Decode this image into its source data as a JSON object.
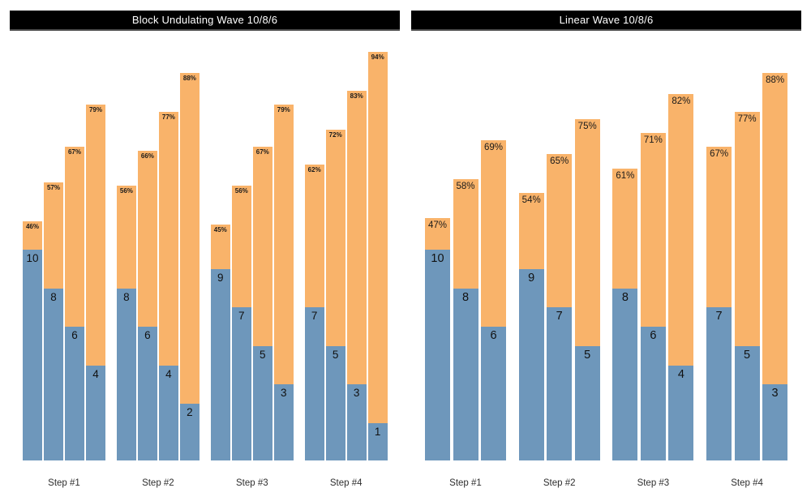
{
  "colors": {
    "background": "#ffffff",
    "bar_blue": "#6e97bb",
    "bar_orange": "#f9b36a",
    "title_bg": "#000000",
    "title_text": "#ffffff",
    "title_border": "#4d4d4d",
    "value_label_text": "#111111",
    "percent_label_text": "#1a1a1a",
    "category_label_text": "#2e2e2e"
  },
  "chart_data": [
    {
      "type": "bar",
      "variant": "stacked-column-groups",
      "title": "Block Undulating Wave 10/8/6",
      "grid": false,
      "legend": false,
      "categories": [
        "Step #1",
        "Step #2",
        "Step #3",
        "Step #4"
      ],
      "groups": [
        {
          "category": "Step #1",
          "bars": [
            {
              "reps": 10,
              "percent": 46,
              "reps_label": "10",
              "percent_label": "46%"
            },
            {
              "reps": 8,
              "percent": 57,
              "reps_label": "8",
              "percent_label": "57%"
            },
            {
              "reps": 6,
              "percent": 67,
              "reps_label": "6",
              "percent_label": "67%"
            },
            {
              "reps": 4,
              "percent": 79,
              "reps_label": "4",
              "percent_label": "79%"
            }
          ]
        },
        {
          "category": "Step #2",
          "bars": [
            {
              "reps": 8,
              "percent": 56,
              "reps_label": "8",
              "percent_label": "56%"
            },
            {
              "reps": 6,
              "percent": 66,
              "reps_label": "6",
              "percent_label": "66%"
            },
            {
              "reps": 4,
              "percent": 77,
              "reps_label": "4",
              "percent_label": "77%"
            },
            {
              "reps": 2,
              "percent": 88,
              "reps_label": "2",
              "percent_label": "88%"
            }
          ]
        },
        {
          "category": "Step #3",
          "bars": [
            {
              "reps": 9,
              "percent": 45,
              "reps_label": "9",
              "percent_label": "45%"
            },
            {
              "reps": 7,
              "percent": 56,
              "reps_label": "7",
              "percent_label": "56%"
            },
            {
              "reps": 5,
              "percent": 67,
              "reps_label": "5",
              "percent_label": "67%"
            },
            {
              "reps": 3,
              "percent": 79,
              "reps_label": "3",
              "percent_label": "79%"
            }
          ]
        },
        {
          "category": "Step #4",
          "bars": [
            {
              "reps": 7,
              "percent": 62,
              "reps_label": "7",
              "percent_label": "62%"
            },
            {
              "reps": 5,
              "percent": 72,
              "reps_label": "5",
              "percent_label": "72%"
            },
            {
              "reps": 3,
              "percent": 83,
              "reps_label": "3",
              "percent_label": "83%"
            },
            {
              "reps": 1,
              "percent": 94,
              "reps_label": "1",
              "percent_label": "94%"
            }
          ]
        }
      ]
    },
    {
      "type": "bar",
      "variant": "stacked-column-groups",
      "title": "Linear Wave 10/8/6",
      "grid": false,
      "legend": false,
      "categories": [
        "Step #1",
        "Step #2",
        "Step #3",
        "Step #4"
      ],
      "groups": [
        {
          "category": "Step #1",
          "bars": [
            {
              "reps": 10,
              "percent": 47,
              "reps_label": "10",
              "percent_label": "47%"
            },
            {
              "reps": 8,
              "percent": 58,
              "reps_label": "8",
              "percent_label": "58%"
            },
            {
              "reps": 6,
              "percent": 69,
              "reps_label": "6",
              "percent_label": "69%"
            }
          ]
        },
        {
          "category": "Step #2",
          "bars": [
            {
              "reps": 9,
              "percent": 54,
              "reps_label": "9",
              "percent_label": "54%"
            },
            {
              "reps": 7,
              "percent": 65,
              "reps_label": "7",
              "percent_label": "65%"
            },
            {
              "reps": 5,
              "percent": 75,
              "reps_label": "5",
              "percent_label": "75%"
            }
          ]
        },
        {
          "category": "Step #3",
          "bars": [
            {
              "reps": 8,
              "percent": 61,
              "reps_label": "8",
              "percent_label": "61%"
            },
            {
              "reps": 6,
              "percent": 71,
              "reps_label": "6",
              "percent_label": "71%"
            },
            {
              "reps": 4,
              "percent": 82,
              "reps_label": "4",
              "percent_label": "82%"
            }
          ]
        },
        {
          "category": "Step #4",
          "bars": [
            {
              "reps": 7,
              "percent": 67,
              "reps_label": "7",
              "percent_label": "67%"
            },
            {
              "reps": 5,
              "percent": 77,
              "reps_label": "5",
              "percent_label": "77%"
            },
            {
              "reps": 3,
              "percent": 88,
              "reps_label": "3",
              "percent_label": "88%"
            }
          ]
        }
      ]
    }
  ]
}
